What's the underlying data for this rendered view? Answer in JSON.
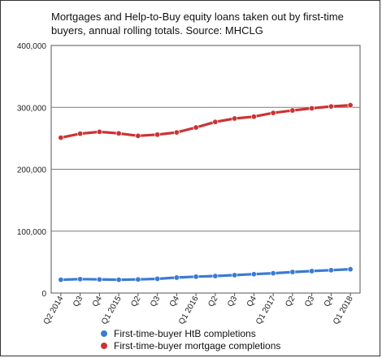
{
  "chart_data": {
    "type": "line",
    "title": "Mortgages and Help-to-Buy equity loans taken out by first-time buyers, annual rolling totals. Source: MHCLG",
    "xlabel": "",
    "ylabel": "",
    "categories": [
      "Q2 2014",
      "Q3",
      "Q4",
      "Q1 2015",
      "Q2",
      "Q3",
      "Q4",
      "Q1 2016",
      "Q2",
      "Q3",
      "Q4",
      "Q1 2017",
      "Q2",
      "Q3",
      "Q4",
      "Q1 2018"
    ],
    "ylim": [
      0,
      400000
    ],
    "yticks": [
      0,
      100000,
      200000,
      300000,
      400000
    ],
    "ytick_labels": [
      "0",
      "100,000",
      "200,000",
      "300,000",
      "400,000"
    ],
    "grid": true,
    "legend_position": "bottom",
    "series": [
      {
        "name": "First-time-buyer HtB completions",
        "color": "#3a7bd5",
        "values": [
          21500,
          22500,
          22000,
          21500,
          22000,
          23000,
          25000,
          26500,
          27500,
          29000,
          30500,
          32000,
          34000,
          35500,
          37000,
          38500
        ]
      },
      {
        "name": "First-time-buyer mortgage completions",
        "color": "#cc3333",
        "values": [
          251000,
          257500,
          260500,
          258000,
          254000,
          256000,
          259500,
          267500,
          276500,
          282000,
          285000,
          291000,
          295000,
          298500,
          301500,
          303500
        ]
      }
    ]
  }
}
